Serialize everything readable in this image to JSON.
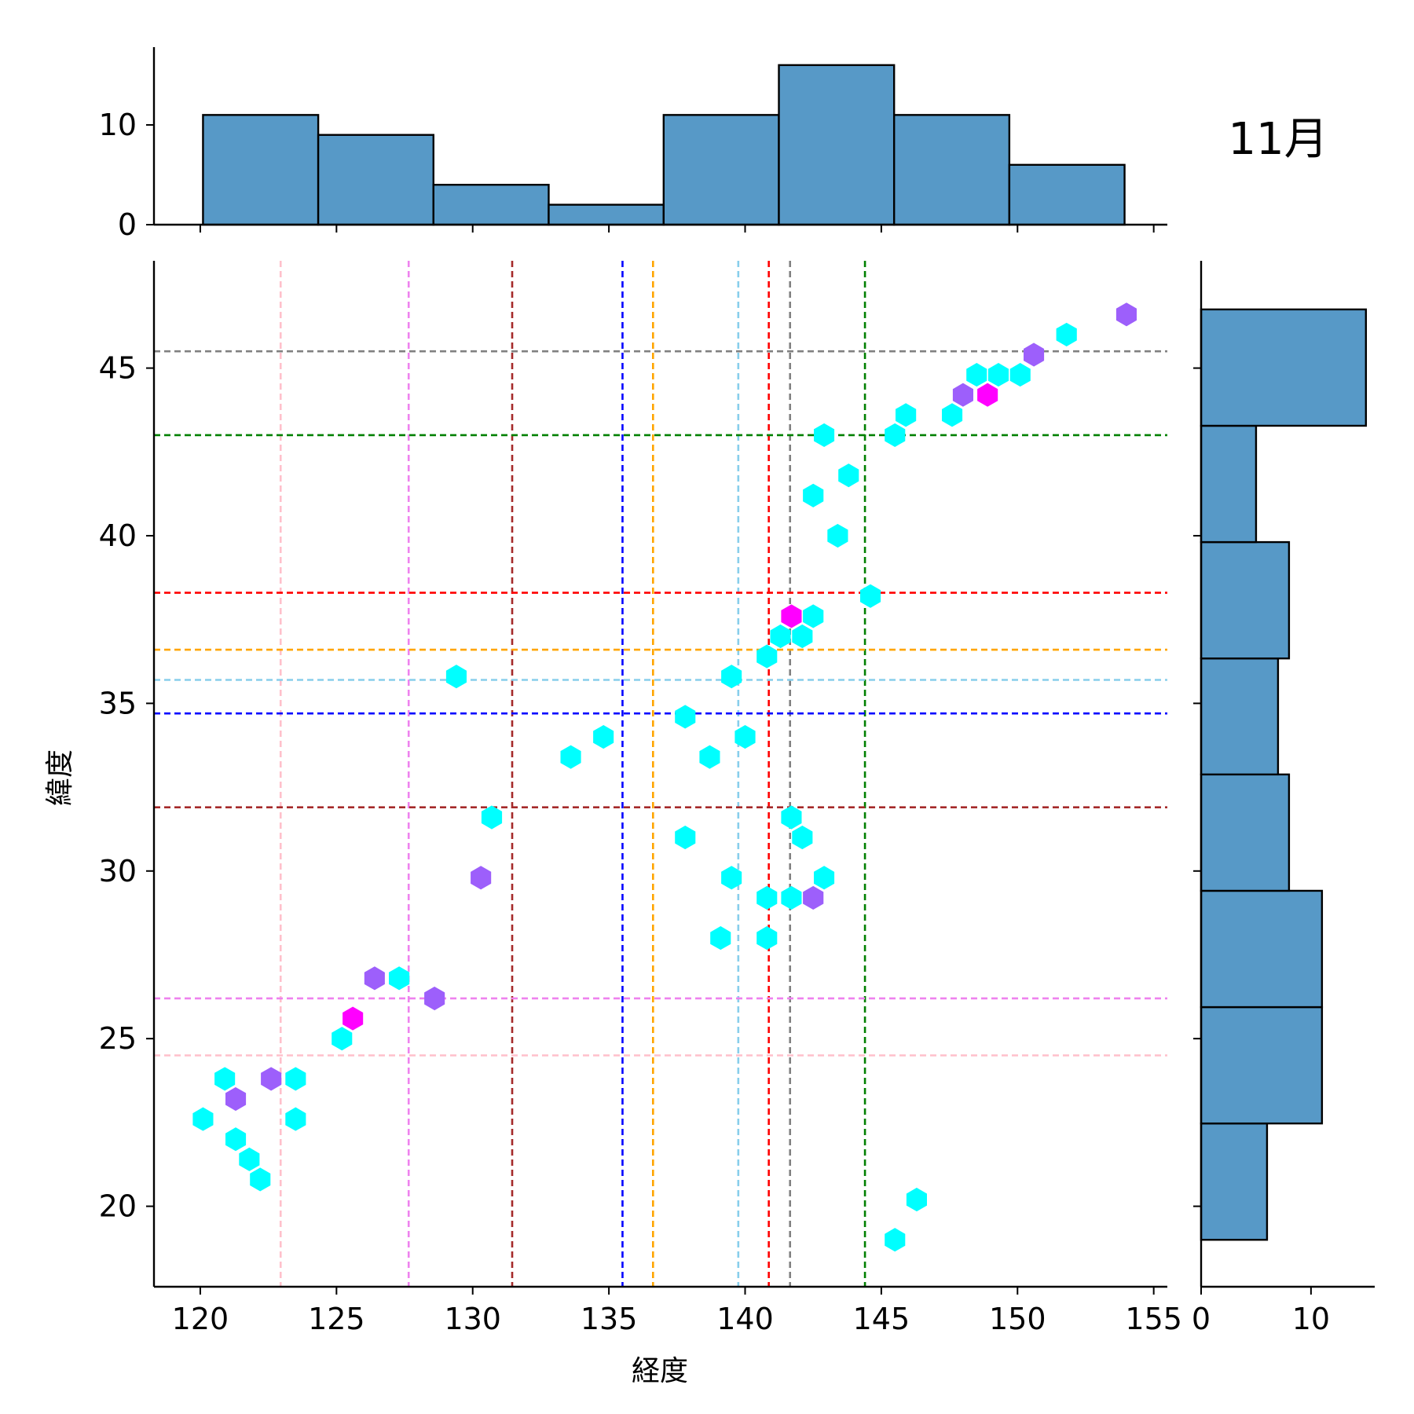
{
  "chart_data": {
    "type": "jointplot-hexbin",
    "title": "11月",
    "xlabel": "経度",
    "ylabel": "緯度",
    "xlim": [
      118.3,
      155.5
    ],
    "ylim": [
      17.6,
      48.2
    ],
    "x_ticks": [
      120,
      125,
      130,
      135,
      140,
      145,
      150,
      155
    ],
    "y_ticks": [
      20,
      25,
      30,
      35,
      40,
      45
    ],
    "colors": {
      "bar_fill": "#5799c7",
      "bar_edge": "#000000",
      "hex_low": "#00ffff",
      "hex_mid": "#9d5ffb",
      "hex_high": "#ff00ff"
    },
    "hexbins": [
      {
        "x": 120.1,
        "y": 22.6,
        "c": "#00ffff"
      },
      {
        "x": 120.9,
        "y": 23.8,
        "c": "#00ffff"
      },
      {
        "x": 121.3,
        "y": 23.2,
        "c": "#9d5ffb"
      },
      {
        "x": 121.3,
        "y": 22.0,
        "c": "#00ffff"
      },
      {
        "x": 121.8,
        "y": 21.4,
        "c": "#00ffff"
      },
      {
        "x": 122.2,
        "y": 20.8,
        "c": "#00ffff"
      },
      {
        "x": 122.6,
        "y": 23.8,
        "c": "#9d5ffb"
      },
      {
        "x": 123.5,
        "y": 23.8,
        "c": "#00ffff"
      },
      {
        "x": 123.5,
        "y": 22.6,
        "c": "#00ffff"
      },
      {
        "x": 125.2,
        "y": 25.0,
        "c": "#00ffff"
      },
      {
        "x": 125.6,
        "y": 25.6,
        "c": "#ff00ff"
      },
      {
        "x": 126.4,
        "y": 26.8,
        "c": "#9d5ffb"
      },
      {
        "x": 127.3,
        "y": 26.8,
        "c": "#00ffff"
      },
      {
        "x": 128.6,
        "y": 26.2,
        "c": "#9d5ffb"
      },
      {
        "x": 129.4,
        "y": 35.8,
        "c": "#00ffff"
      },
      {
        "x": 130.3,
        "y": 29.8,
        "c": "#9d5ffb"
      },
      {
        "x": 130.7,
        "y": 31.6,
        "c": "#00ffff"
      },
      {
        "x": 133.6,
        "y": 33.4,
        "c": "#00ffff"
      },
      {
        "x": 134.8,
        "y": 34.0,
        "c": "#00ffff"
      },
      {
        "x": 137.8,
        "y": 34.6,
        "c": "#00ffff"
      },
      {
        "x": 137.8,
        "y": 31.0,
        "c": "#00ffff"
      },
      {
        "x": 138.7,
        "y": 33.4,
        "c": "#00ffff"
      },
      {
        "x": 139.1,
        "y": 28.0,
        "c": "#00ffff"
      },
      {
        "x": 139.5,
        "y": 35.8,
        "c": "#00ffff"
      },
      {
        "x": 139.5,
        "y": 29.8,
        "c": "#00ffff"
      },
      {
        "x": 140.0,
        "y": 34.0,
        "c": "#00ffff"
      },
      {
        "x": 140.8,
        "y": 36.4,
        "c": "#00ffff"
      },
      {
        "x": 140.8,
        "y": 29.2,
        "c": "#00ffff"
      },
      {
        "x": 140.8,
        "y": 28.0,
        "c": "#00ffff"
      },
      {
        "x": 141.3,
        "y": 37.0,
        "c": "#00ffff"
      },
      {
        "x": 141.7,
        "y": 37.6,
        "c": "#ff00ff"
      },
      {
        "x": 141.7,
        "y": 31.6,
        "c": "#00ffff"
      },
      {
        "x": 141.7,
        "y": 29.2,
        "c": "#00ffff"
      },
      {
        "x": 142.1,
        "y": 37.0,
        "c": "#00ffff"
      },
      {
        "x": 142.1,
        "y": 31.0,
        "c": "#00ffff"
      },
      {
        "x": 142.5,
        "y": 41.2,
        "c": "#00ffff"
      },
      {
        "x": 142.5,
        "y": 37.6,
        "c": "#00ffff"
      },
      {
        "x": 142.5,
        "y": 29.2,
        "c": "#9d5ffb"
      },
      {
        "x": 142.9,
        "y": 43.0,
        "c": "#00ffff"
      },
      {
        "x": 142.9,
        "y": 29.8,
        "c": "#00ffff"
      },
      {
        "x": 143.4,
        "y": 40.0,
        "c": "#00ffff"
      },
      {
        "x": 143.8,
        "y": 41.8,
        "c": "#00ffff"
      },
      {
        "x": 144.6,
        "y": 38.2,
        "c": "#00ffff"
      },
      {
        "x": 145.5,
        "y": 43.0,
        "c": "#00ffff"
      },
      {
        "x": 145.5,
        "y": 19.0,
        "c": "#00ffff"
      },
      {
        "x": 145.9,
        "y": 43.6,
        "c": "#00ffff"
      },
      {
        "x": 146.3,
        "y": 20.2,
        "c": "#00ffff"
      },
      {
        "x": 147.6,
        "y": 43.6,
        "c": "#00ffff"
      },
      {
        "x": 148.0,
        "y": 44.2,
        "c": "#9d5ffb"
      },
      {
        "x": 148.5,
        "y": 44.8,
        "c": "#00ffff"
      },
      {
        "x": 148.9,
        "y": 44.2,
        "c": "#ff00ff"
      },
      {
        "x": 149.3,
        "y": 44.8,
        "c": "#00ffff"
      },
      {
        "x": 150.1,
        "y": 44.8,
        "c": "#00ffff"
      },
      {
        "x": 150.6,
        "y": 45.4,
        "c": "#9d5ffb"
      },
      {
        "x": 151.8,
        "y": 46.0,
        "c": "#00ffff"
      },
      {
        "x": 154.0,
        "y": 46.6,
        "c": "#9d5ffb"
      }
    ],
    "vlines": [
      {
        "x": 122.95,
        "color": "#ffc0cb"
      },
      {
        "x": 127.65,
        "color": "#ee82ee"
      },
      {
        "x": 131.45,
        "color": "#a52a2a"
      },
      {
        "x": 135.5,
        "color": "#0000ff"
      },
      {
        "x": 136.62,
        "color": "#ffa500"
      },
      {
        "x": 139.75,
        "color": "#87ceeb"
      },
      {
        "x": 140.87,
        "color": "#ff0000"
      },
      {
        "x": 141.65,
        "color": "#808080"
      },
      {
        "x": 144.4,
        "color": "#008000"
      }
    ],
    "hlines": [
      {
        "y": 24.5,
        "color": "#ffc0cb"
      },
      {
        "y": 26.2,
        "color": "#ee82ee"
      },
      {
        "y": 31.9,
        "color": "#a52a2a"
      },
      {
        "y": 34.7,
        "color": "#0000ff"
      },
      {
        "y": 36.6,
        "color": "#ffa500"
      },
      {
        "y": 35.7,
        "color": "#87ceeb"
      },
      {
        "y": 38.3,
        "color": "#ff0000"
      },
      {
        "y": 45.5,
        "color": "#808080"
      },
      {
        "y": 43.0,
        "color": "#008000"
      }
    ],
    "x_hist": {
      "bin_edges": [
        120.1,
        124.33,
        128.56,
        132.79,
        137.01,
        141.24,
        145.47,
        149.7,
        153.93
      ],
      "counts": [
        11,
        9,
        4,
        2,
        11,
        16,
        11,
        6
      ],
      "ylim": [
        0,
        17.8
      ],
      "ticks": [
        0,
        10
      ]
    },
    "y_hist": {
      "bin_edges": [
        19.0,
        22.47,
        25.94,
        29.41,
        32.88,
        36.34,
        39.81,
        43.28,
        46.75
      ],
      "counts": [
        6,
        11,
        11,
        8,
        7,
        8,
        5,
        15
      ],
      "xlim": [
        0,
        15.8
      ],
      "ticks": [
        0,
        10
      ]
    }
  }
}
